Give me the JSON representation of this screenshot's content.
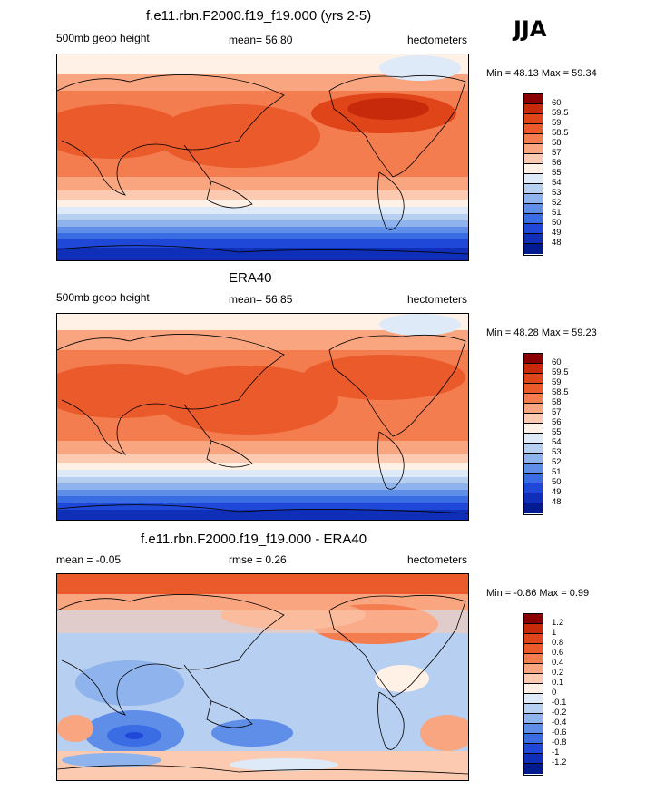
{
  "season": "JJA",
  "panels": [
    {
      "title": "f.e11.rbn.F2000.f19_f19.000 (yrs 2-5)",
      "left_label": "500mb geop height",
      "mid_label": "mean=  56.80",
      "units": "hectometers",
      "minmax": "Min =  48.13 Max =  59.34",
      "colorbar_labels": [
        "60",
        "59.5",
        "59",
        "58.5",
        "58",
        "57",
        "56",
        "55",
        "54",
        "53",
        "52",
        "51",
        "50",
        "49",
        "48"
      ]
    },
    {
      "title": "ERA40",
      "left_label": "500mb geop height",
      "mid_label": "mean=  56.85",
      "units": "hectometers",
      "minmax": "Min =  48.28 Max =  59.23",
      "colorbar_labels": [
        "60",
        "59.5",
        "59",
        "58.5",
        "58",
        "57",
        "56",
        "55",
        "54",
        "53",
        "52",
        "51",
        "50",
        "49",
        "48"
      ]
    },
    {
      "title": "f.e11.rbn.F2000.f19_f19.000 - ERA40",
      "left_label": "mean =  -0.05",
      "mid_label": "rmse =   0.26",
      "units": "hectometers",
      "minmax": "Min =  -0.86 Max =   0.99",
      "colorbar_labels": [
        "1.2",
        "1",
        "0.8",
        "0.6",
        "0.4",
        "0.2",
        "0.1",
        "0",
        "-0.1",
        "-0.2",
        "-0.4",
        "-0.6",
        "-0.8",
        "-1",
        "-1.2"
      ]
    }
  ],
  "colors": {
    "abs_scale": [
      "#8b0000",
      "#c62a0a",
      "#e0451a",
      "#ea5a2a",
      "#f47d50",
      "#f9a580",
      "#fccab0",
      "#fff1e6",
      "#dfeaf8",
      "#b7cff0",
      "#8fb3ec",
      "#5f8ee8",
      "#3a6de3",
      "#1f48d8",
      "#0f2fb8",
      "#001a8f"
    ],
    "diff_scale": [
      "#8b0000",
      "#c62a0a",
      "#e0451a",
      "#ea5a2a",
      "#f47d50",
      "#f9a580",
      "#fccab0",
      "#fff1e6",
      "#dfeaf8",
      "#b7cff0",
      "#8fb3ec",
      "#5f8ee8",
      "#3a6de3",
      "#1f48d8",
      "#0f2fb8",
      "#001a8f"
    ]
  }
}
